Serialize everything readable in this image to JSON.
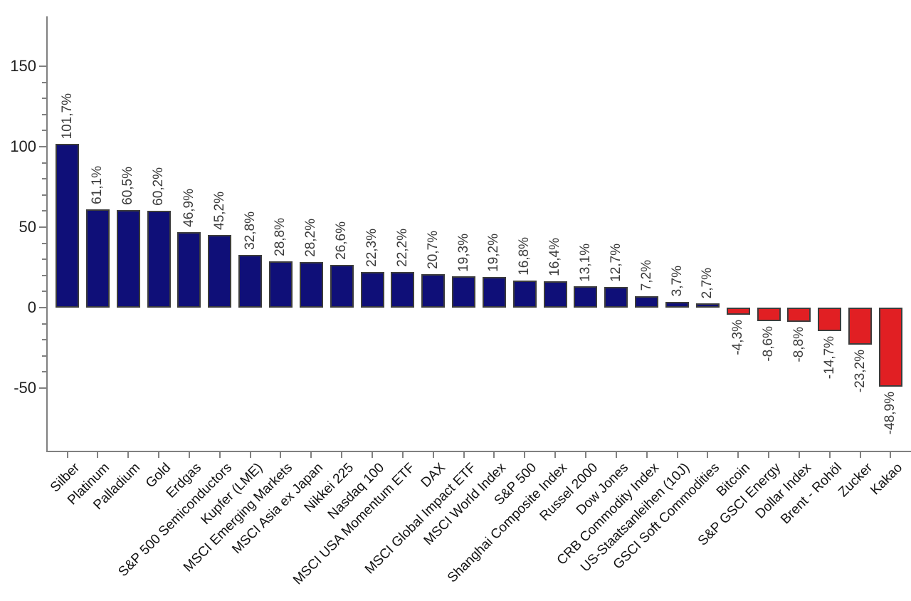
{
  "chart_data": {
    "type": "bar",
    "title": "",
    "xlabel": "",
    "ylabel": "",
    "grid": false,
    "legend": null,
    "categories": [
      "Silber",
      "Platinum",
      "Palladium",
      "Gold",
      "Erdgas",
      "S&P 500 Semiconductors",
      "Kupfer (LME)",
      "MSCI Emerging Markets",
      "MSCI Asia ex Japan",
      "Nikkei 225",
      "Nasdaq 100",
      "MSCI USA Momentum ETF",
      "DAX",
      "MSCI Global Impact ETF",
      "MSCI World Index",
      "S&P 500",
      "Shanghai Composite Index",
      "Russel 2000",
      "Dow Jones",
      "CRB Commodity Index",
      "US-Staatsanleihen (10J)",
      "GSCI Soft Commodities",
      "Bitcoin",
      "S&P GSCI Energy",
      "Dollar Index",
      "Brent - Rohöl",
      "Zucker",
      "Kakao"
    ],
    "values": [
      101.7,
      61.1,
      60.5,
      60.2,
      46.9,
      45.2,
      32.8,
      28.8,
      28.2,
      26.6,
      22.3,
      22.2,
      20.7,
      19.3,
      19.2,
      16.8,
      16.4,
      13.1,
      12.7,
      7.2,
      3.7,
      2.7,
      -4.3,
      -8.6,
      -8.8,
      -14.7,
      -23.2,
      -48.9
    ],
    "value_labels": [
      "101,7%",
      "61,1%",
      "60,5%",
      "60,2%",
      "46,9%",
      "45,2%",
      "32,8%",
      "28,8%",
      "28,2%",
      "26,6%",
      "22,3%",
      "22,2%",
      "20,7%",
      "19,3%",
      "19,2%",
      "16,8%",
      "16,4%",
      "13,1%",
      "12,7%",
      "7,2%",
      "3,7%",
      "2,7%",
      "-4,3%",
      "-8,6%",
      "-8,8%",
      "-14,7%",
      "-23,2%",
      "-48,9%"
    ],
    "yticks": [
      150,
      100,
      50,
      0,
      -50
    ],
    "ytick_labels": [
      "150",
      "100",
      "50",
      "0",
      "-50"
    ],
    "minor_tick_step": 10,
    "minor_tick_range": [
      -40,
      140
    ],
    "ylim": [
      -89,
      181
    ],
    "colors": {
      "positive": "#0f0f78",
      "negative": "#e11f23",
      "bar_border": "#3c3c3c",
      "axis": "#808080",
      "value_label": "#3a3a3a",
      "category_label": "#121212"
    }
  }
}
